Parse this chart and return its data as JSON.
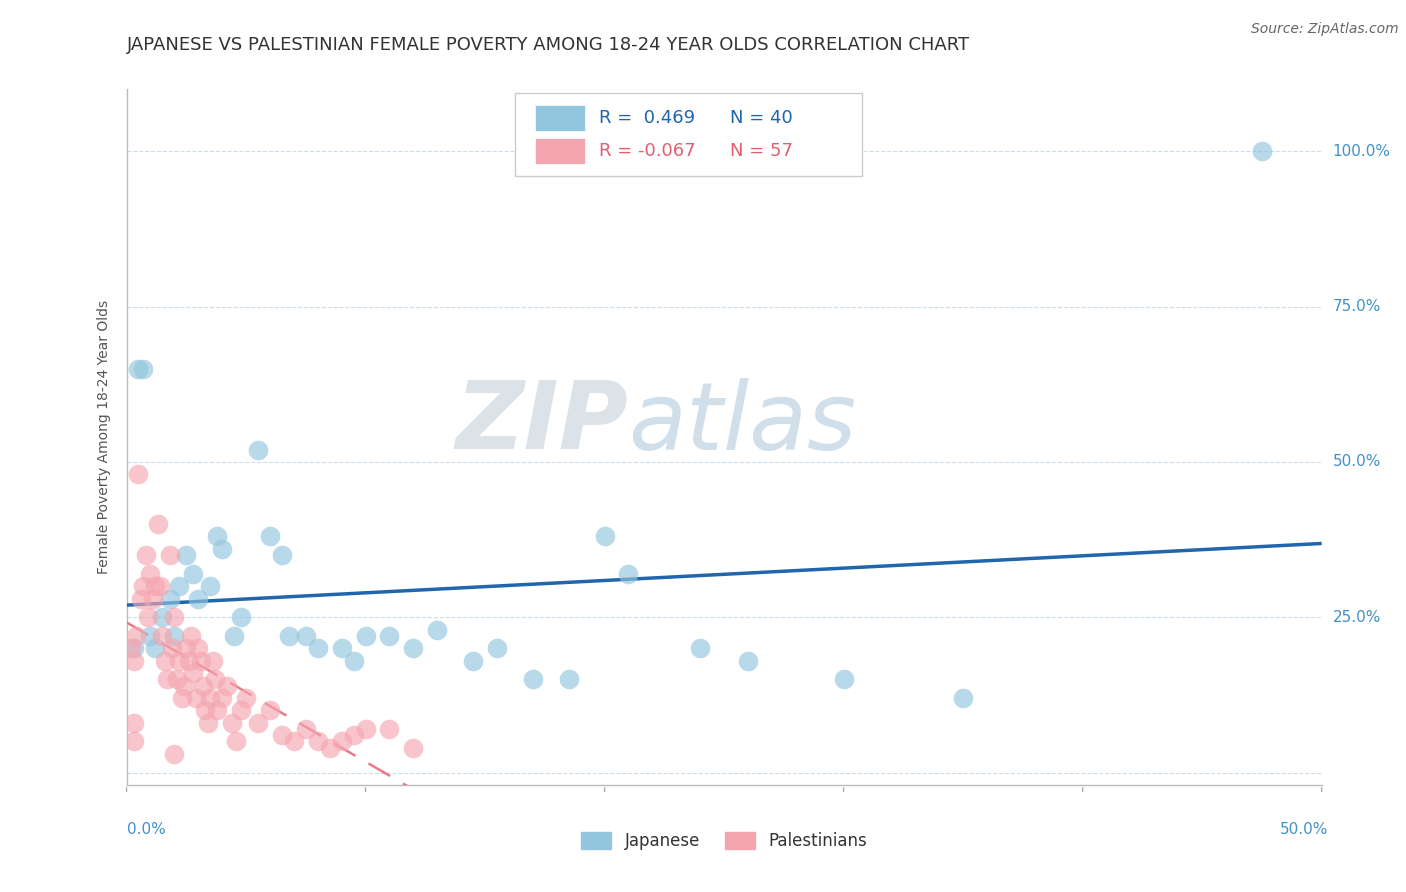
{
  "title": "JAPANESE VS PALESTINIAN FEMALE POVERTY AMONG 18-24 YEAR OLDS CORRELATION CHART",
  "source": "Source: ZipAtlas.com",
  "ylabel": "Female Poverty Among 18-24 Year Olds",
  "xlim": [
    0.0,
    0.5
  ],
  "ylim": [
    -0.02,
    1.1
  ],
  "yticks": [
    0.0,
    0.25,
    0.5,
    0.75,
    1.0
  ],
  "ytick_labels": [
    "",
    "25.0%",
    "50.0%",
    "75.0%",
    "100.0%"
  ],
  "legend_japanese": {
    "R": 0.469,
    "N": 40
  },
  "legend_palestinian": {
    "R": -0.067,
    "N": 57
  },
  "japanese_color": "#92c5de",
  "palestinian_color": "#f4a6b0",
  "japanese_line_color": "#2166ac",
  "palestinian_line_color": "#e87a8a",
  "background_color": "#ffffff",
  "grid_color": "#c8d8e8",
  "watermark_zip": "ZIP",
  "watermark_atlas": "atlas",
  "japanese_points": [
    [
      0.003,
      0.2
    ],
    [
      0.005,
      0.65
    ],
    [
      0.007,
      0.65
    ],
    [
      0.01,
      0.22
    ],
    [
      0.012,
      0.2
    ],
    [
      0.015,
      0.25
    ],
    [
      0.018,
      0.28
    ],
    [
      0.02,
      0.22
    ],
    [
      0.022,
      0.3
    ],
    [
      0.025,
      0.35
    ],
    [
      0.028,
      0.32
    ],
    [
      0.03,
      0.28
    ],
    [
      0.035,
      0.3
    ],
    [
      0.038,
      0.38
    ],
    [
      0.04,
      0.36
    ],
    [
      0.045,
      0.22
    ],
    [
      0.048,
      0.25
    ],
    [
      0.055,
      0.52
    ],
    [
      0.06,
      0.38
    ],
    [
      0.065,
      0.35
    ],
    [
      0.068,
      0.22
    ],
    [
      0.075,
      0.22
    ],
    [
      0.08,
      0.2
    ],
    [
      0.09,
      0.2
    ],
    [
      0.095,
      0.18
    ],
    [
      0.1,
      0.22
    ],
    [
      0.11,
      0.22
    ],
    [
      0.12,
      0.2
    ],
    [
      0.13,
      0.23
    ],
    [
      0.145,
      0.18
    ],
    [
      0.155,
      0.2
    ],
    [
      0.17,
      0.15
    ],
    [
      0.185,
      0.15
    ],
    [
      0.2,
      0.38
    ],
    [
      0.21,
      0.32
    ],
    [
      0.24,
      0.2
    ],
    [
      0.26,
      0.18
    ],
    [
      0.3,
      0.15
    ],
    [
      0.35,
      0.12
    ],
    [
      0.475,
      1.0
    ]
  ],
  "palestinian_points": [
    [
      0.002,
      0.2
    ],
    [
      0.003,
      0.18
    ],
    [
      0.004,
      0.22
    ],
    [
      0.005,
      0.48
    ],
    [
      0.006,
      0.28
    ],
    [
      0.007,
      0.3
    ],
    [
      0.008,
      0.35
    ],
    [
      0.009,
      0.25
    ],
    [
      0.01,
      0.32
    ],
    [
      0.011,
      0.28
    ],
    [
      0.012,
      0.3
    ],
    [
      0.013,
      0.4
    ],
    [
      0.014,
      0.3
    ],
    [
      0.015,
      0.22
    ],
    [
      0.016,
      0.18
    ],
    [
      0.017,
      0.15
    ],
    [
      0.018,
      0.35
    ],
    [
      0.019,
      0.2
    ],
    [
      0.02,
      0.25
    ],
    [
      0.021,
      0.15
    ],
    [
      0.022,
      0.18
    ],
    [
      0.023,
      0.12
    ],
    [
      0.024,
      0.14
    ],
    [
      0.025,
      0.2
    ],
    [
      0.026,
      0.18
    ],
    [
      0.027,
      0.22
    ],
    [
      0.028,
      0.16
    ],
    [
      0.029,
      0.12
    ],
    [
      0.03,
      0.2
    ],
    [
      0.031,
      0.18
    ],
    [
      0.032,
      0.14
    ],
    [
      0.033,
      0.1
    ],
    [
      0.034,
      0.08
    ],
    [
      0.035,
      0.12
    ],
    [
      0.036,
      0.18
    ],
    [
      0.037,
      0.15
    ],
    [
      0.038,
      0.1
    ],
    [
      0.04,
      0.12
    ],
    [
      0.042,
      0.14
    ],
    [
      0.044,
      0.08
    ],
    [
      0.046,
      0.05
    ],
    [
      0.048,
      0.1
    ],
    [
      0.05,
      0.12
    ],
    [
      0.055,
      0.08
    ],
    [
      0.06,
      0.1
    ],
    [
      0.065,
      0.06
    ],
    [
      0.07,
      0.05
    ],
    [
      0.075,
      0.07
    ],
    [
      0.08,
      0.05
    ],
    [
      0.085,
      0.04
    ],
    [
      0.09,
      0.05
    ],
    [
      0.095,
      0.06
    ],
    [
      0.1,
      0.07
    ],
    [
      0.11,
      0.07
    ],
    [
      0.12,
      0.04
    ],
    [
      0.02,
      0.03
    ],
    [
      0.003,
      0.05
    ],
    [
      0.003,
      0.08
    ]
  ],
  "title_fontsize": 13,
  "axis_label_fontsize": 10,
  "tick_fontsize": 11,
  "source_fontsize": 10
}
